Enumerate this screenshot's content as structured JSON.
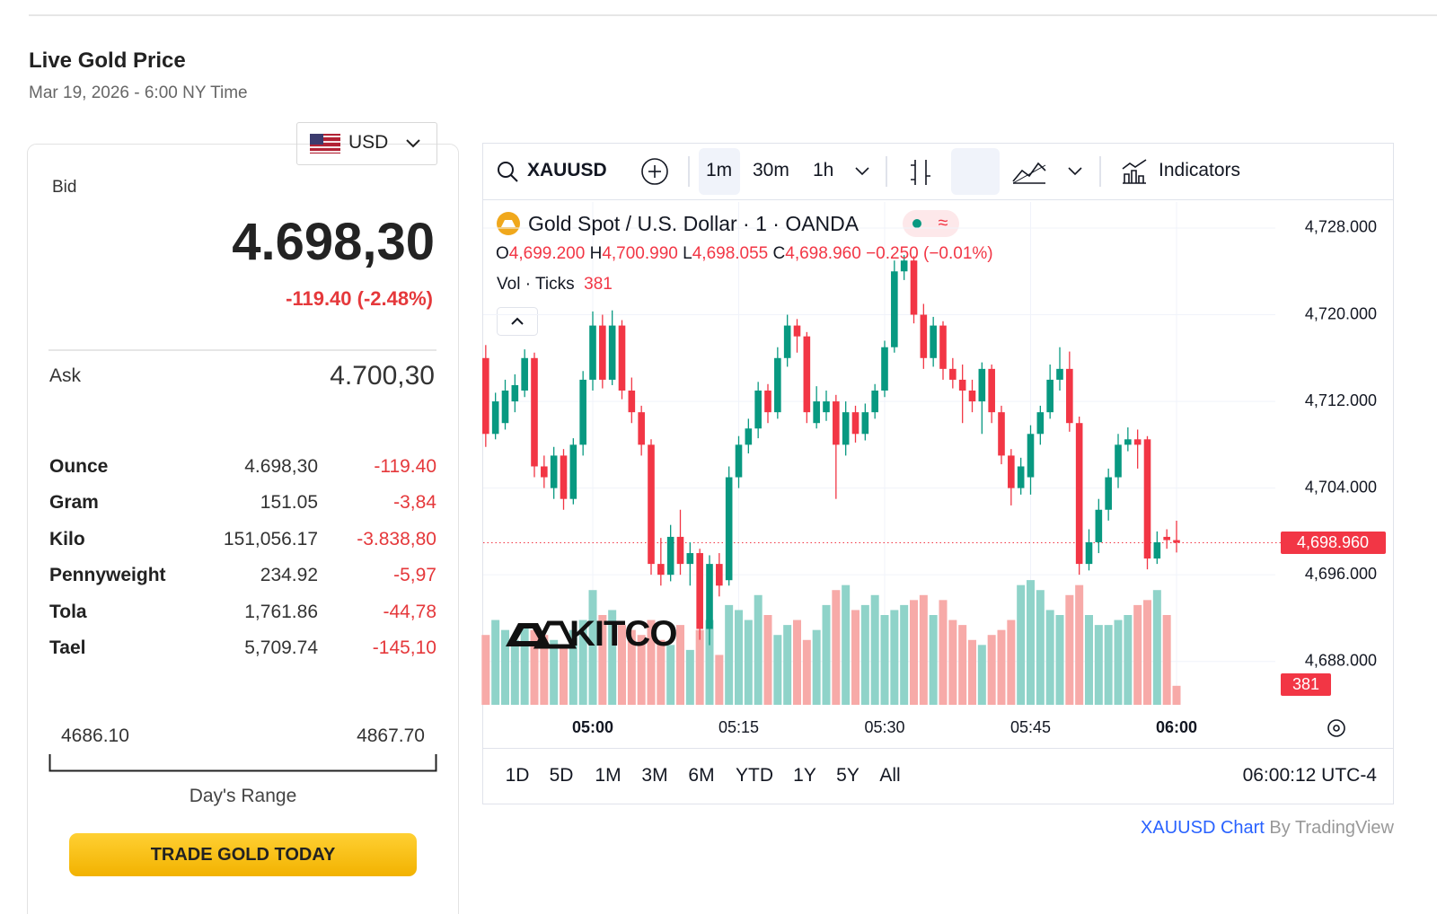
{
  "header": {
    "title": "Live Gold Price",
    "subtitle": "Mar 19, 2026 - 6:00 NY Time"
  },
  "converter": {
    "currency": "USD",
    "bid_label": "Bid",
    "bid": "4.698,30",
    "bid_change": "-119.40 (-2.48%)",
    "ask_label": "Ask",
    "ask": "4.700,30",
    "rows": [
      [
        "Ounce",
        "4.698,30",
        "-119.40"
      ],
      [
        "Gram",
        "151.05",
        "-3,84"
      ],
      [
        "Kilo",
        "151,056.17",
        "-3.838,80"
      ],
      [
        "Pennyweight",
        "234.92",
        "-5,97"
      ],
      [
        "Tola",
        "1,761.86",
        "-44,78"
      ],
      [
        "Tael",
        "5,709.74",
        "-145,10"
      ]
    ],
    "range_low": "4686.10",
    "range_high": "4867.70",
    "range_label": "Day's Range",
    "button": "TRADE GOLD TODAY"
  },
  "widget": {
    "symbol": "XAUUSD",
    "intervals": [
      "1m",
      "30m",
      "1h"
    ],
    "indicators": "Indicators",
    "ranges": [
      "1D",
      "5D",
      "1M",
      "3M",
      "6M",
      "YTD",
      "1Y",
      "5Y",
      "All"
    ],
    "clock": "06:00:12 UTC-4",
    "footer_link": "XAUUSD Chart",
    "footer_by": "By TradingView",
    "watermark": "KITCO"
  },
  "chart_data": {
    "type": "candlestick",
    "title": "Gold Spot / U.S. Dollar · 1 · OANDA",
    "x": [
      "04:49",
      "04:50",
      "04:51",
      "04:52",
      "04:53",
      "04:54",
      "04:55",
      "04:56",
      "04:57",
      "04:58",
      "04:59",
      "05:00",
      "05:01",
      "05:02",
      "05:03",
      "05:04",
      "05:05",
      "05:06",
      "05:07",
      "05:08",
      "05:09",
      "05:10",
      "05:11",
      "05:12",
      "05:13",
      "05:14",
      "05:15",
      "05:16",
      "05:17",
      "05:18",
      "05:19",
      "05:20",
      "05:21",
      "05:22",
      "05:23",
      "05:24",
      "05:25",
      "05:26",
      "05:27",
      "05:28",
      "05:29",
      "05:30",
      "05:31",
      "05:32",
      "05:33",
      "05:34",
      "05:35",
      "05:36",
      "05:37",
      "05:38",
      "05:39",
      "05:40",
      "05:41",
      "05:42",
      "05:43",
      "05:44",
      "05:45",
      "05:46",
      "05:47",
      "05:48",
      "05:49",
      "05:50",
      "05:51",
      "05:52",
      "05:53",
      "05:54",
      "05:55",
      "05:56",
      "05:57",
      "05:58",
      "05:59",
      "06:00"
    ],
    "open": [
      4716,
      4709,
      4710,
      4712,
      4713,
      4716,
      4706,
      4704,
      4707,
      4703,
      4708,
      4714,
      4719,
      4714,
      4719,
      4713,
      4711,
      4708,
      4697,
      4696,
      4699.5,
      4697,
      4698,
      4691,
      4697,
      4695.5,
      4705,
      4708,
      4709.5,
      4713,
      4711,
      4716,
      4719,
      4718,
      4710,
      4711,
      4712,
      4708,
      4711,
      4709,
      4711,
      4713,
      4717,
      4724,
      4725,
      4720,
      4716,
      4719,
      4715,
      4714,
      4713,
      4712,
      4715,
      4711,
      4707,
      4704,
      4705,
      4709,
      4711,
      4714,
      4715,
      4710,
      4697,
      4699,
      4702,
      4705,
      4708,
      4708.5,
      4708.5,
      4697.5,
      4699.5,
      4699.2
    ],
    "high": [
      4717.2,
      4712.8,
      4714,
      4714.5,
      4716.8,
      4716.5,
      4707,
      4707.8,
      4707.6,
      4708.6,
      4714.8,
      4720.3,
      4720,
      4720.4,
      4719.5,
      4714.2,
      4711.6,
      4708.5,
      4699.4,
      4700.6,
      4702,
      4699,
      4698.4,
      4697.8,
      4698,
      4706,
      4708.8,
      4710.4,
      4713.8,
      4713.6,
      4717,
      4720,
      4719.6,
      4718.4,
      4713.4,
      4713,
      4712.6,
      4712,
      4711.6,
      4711.8,
      4713.6,
      4717.6,
      4725,
      4725.5,
      4725.4,
      4721,
      4719.8,
      4719.4,
      4716,
      4715.4,
      4714,
      4715.6,
      4715.4,
      4711.6,
      4707.6,
      4706.8,
      4709.8,
      4711.6,
      4715.4,
      4717,
      4716.6,
      4710.6,
      4700.2,
      4703,
      4705.8,
      4709,
      4709.6,
      4709.4,
      4708.8,
      4700,
      4700.2,
      4700.99
    ],
    "low": [
      4707.8,
      4708.5,
      4709.4,
      4711,
      4712.4,
      4705,
      4704,
      4703,
      4702,
      4702.5,
      4707,
      4713,
      4713.2,
      4713.5,
      4712.2,
      4710,
      4707,
      4696,
      4695,
      4695.4,
      4696,
      4695,
      4690,
      4689.5,
      4694,
      4695,
      4704,
      4707.2,
      4708.6,
      4710,
      4710.4,
      4715.2,
      4716.5,
      4710,
      4709.5,
      4710.2,
      4703,
      4707,
      4708.2,
      4708.4,
      4710.4,
      4712.4,
      4716.5,
      4723.2,
      4719.2,
      4715,
      4715.2,
      4714,
      4713.2,
      4710,
      4711,
      4709,
      4710,
      4706.2,
      4702.4,
      4703.4,
      4703.4,
      4708,
      4710.4,
      4713,
      4709.2,
      4696,
      4696.4,
      4698,
      4701,
      4704,
      4707.4,
      4705.8,
      4696.5,
      4697,
      4698.4,
      4698.055
    ],
    "close": [
      4709,
      4712,
      4713,
      4713.5,
      4716,
      4706,
      4705,
      4707,
      4703,
      4708,
      4714,
      4719,
      4714,
      4719,
      4713,
      4711,
      4708,
      4697,
      4696,
      4699.5,
      4697,
      4698,
      4691,
      4697,
      4695,
      4705,
      4708,
      4709.5,
      4713,
      4711,
      4716,
      4719,
      4718,
      4711,
      4712,
      4712,
      4708,
      4711,
      4709,
      4711,
      4713,
      4717,
      4724,
      4725,
      4720,
      4716,
      4719,
      4715,
      4714,
      4713,
      4712,
      4715,
      4711,
      4707,
      4704,
      4706,
      4709,
      4711,
      4714,
      4715,
      4710,
      4697,
      4699,
      4702,
      4705,
      4708,
      4708.5,
      4708,
      4697.5,
      4699,
      4699.2,
      4698.96
    ],
    "volume": [
      1400,
      1700,
      1500,
      1300,
      1600,
      1500,
      1400,
      1300,
      1200,
      1500,
      1700,
      2300,
      1800,
      1900,
      1600,
      1500,
      1400,
      1700,
      1300,
      1200,
      1600,
      1100,
      1500,
      1700,
      1000,
      2000,
      1900,
      1700,
      2200,
      1800,
      1400,
      1600,
      1700,
      1300,
      1500,
      2000,
      2300,
      2400,
      1900,
      2000,
      2200,
      1800,
      1900,
      2000,
      2100,
      2200,
      1800,
      2100,
      1700,
      1600,
      1300,
      1200,
      1400,
      1500,
      1700,
      2400,
      2500,
      2300,
      1900,
      1800,
      2200,
      2400,
      1800,
      1600,
      1600,
      1700,
      1800,
      2000,
      2100,
      2300,
      1800,
      381
    ],
    "value_labels": {
      "open": "4,699.200",
      "high": "4,700.990",
      "low": "4,698.055",
      "close": "4,698.960"
    },
    "ohlc_letters": [
      "O",
      "H",
      "L",
      "C"
    ],
    "change_label": "−0.250 (−0.01%)",
    "volume_title": "Vol · Ticks",
    "ylim": [
      4684,
      4730.4
    ],
    "yticks": [
      {
        "value": 4728,
        "label": "4,728.000"
      },
      {
        "value": 4720,
        "label": "4,720.000"
      },
      {
        "value": 4712,
        "label": "4,712.000"
      },
      {
        "value": 4704,
        "label": "4,704.000"
      },
      {
        "value": 4696,
        "label": "4,696.000"
      },
      {
        "value": 4688,
        "label": "4,688.000"
      }
    ],
    "xticks": [
      "05:00",
      "05:15",
      "05:30",
      "05:45",
      "06:00"
    ],
    "vlim": [
      0,
      2700
    ],
    "grid": true,
    "colors": {
      "up": "#089981",
      "down": "#f23645",
      "volume_up": "#8fd3c9",
      "volume_down": "#f7aaa8"
    }
  }
}
